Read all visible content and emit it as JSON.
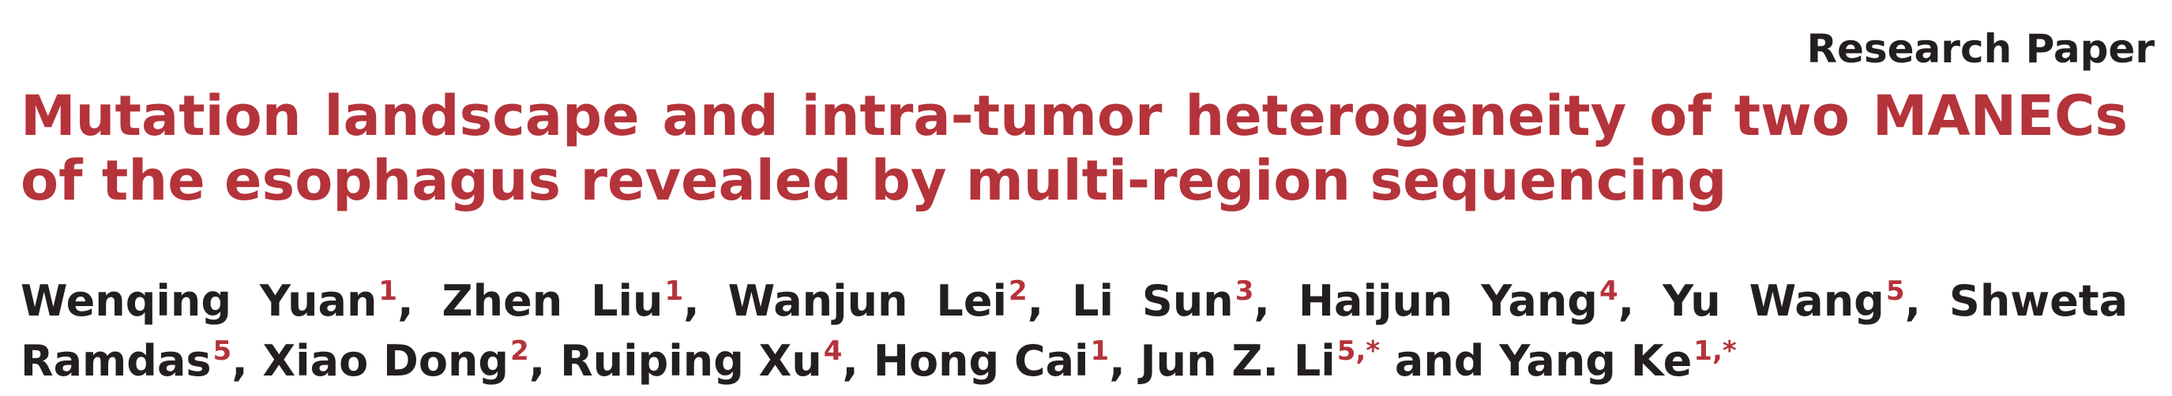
{
  "header": {
    "section_label": "Research Paper"
  },
  "title": "Mutation landscape and intra-tumor heterogeneity of two MANECs of the esophagus revealed by multi-region sequencing",
  "authors": [
    {
      "name": "Wenqing Yuan",
      "aff": "1",
      "sep": ", "
    },
    {
      "name": "Zhen Liu",
      "aff": "1",
      "sep": ", "
    },
    {
      "name": "Wanjun Lei",
      "aff": "2",
      "sep": ", "
    },
    {
      "name": "Li Sun",
      "aff": "3",
      "sep": ", "
    },
    {
      "name": "Haijun Yang",
      "aff": "4",
      "sep": ", "
    },
    {
      "name": "Yu Wang",
      "aff": "5",
      "sep": ", "
    },
    {
      "name": "Shweta Ramdas",
      "aff": "5",
      "sep": ", "
    },
    {
      "name": "Xiao Dong",
      "aff": "2",
      "sep": ", "
    },
    {
      "name": "Ruiping Xu",
      "aff": "4",
      "sep": ", "
    },
    {
      "name": "Hong Cai",
      "aff": "1",
      "sep": ", "
    },
    {
      "name": "Jun Z. Li",
      "aff": "5,*",
      "sep": " and "
    },
    {
      "name": "Yang Ke",
      "aff": "1,*",
      "sep": ""
    }
  ],
  "colors": {
    "title": "#b5333a",
    "text": "#231f20",
    "affiliation": "#b5333a"
  }
}
